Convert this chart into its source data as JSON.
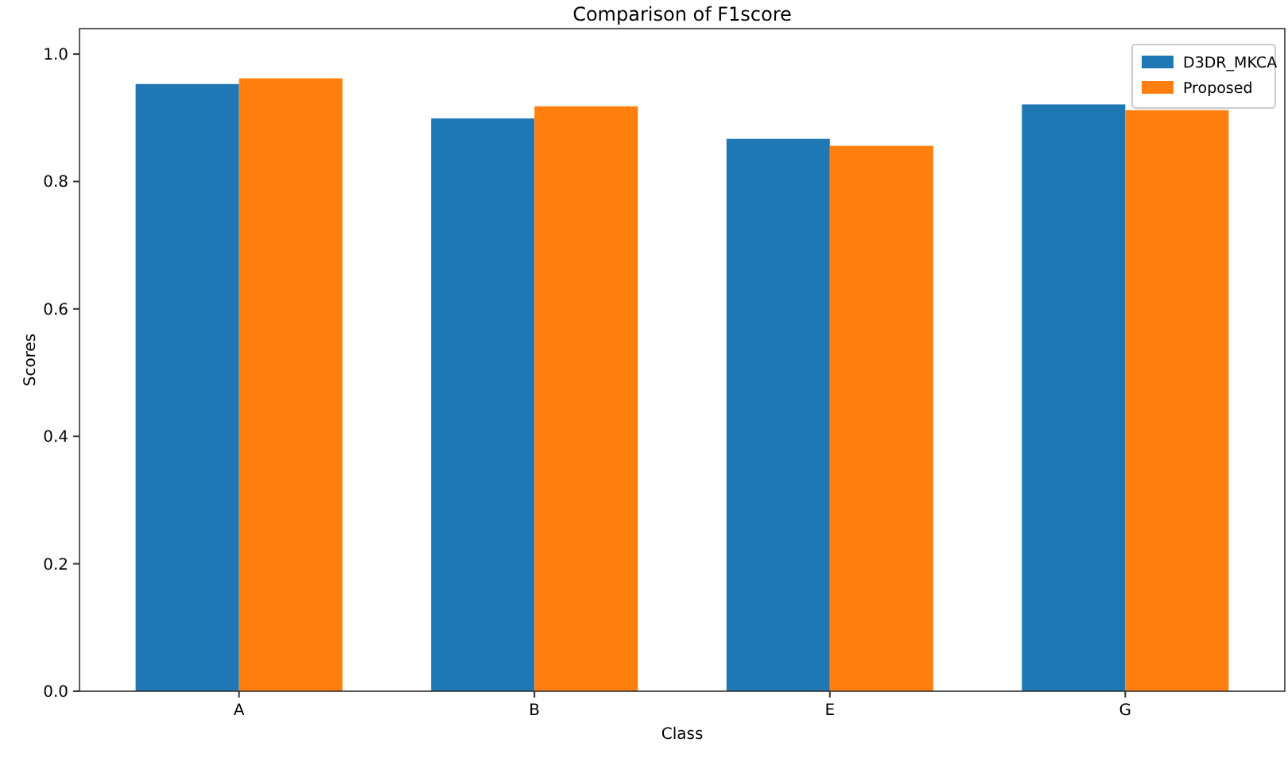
{
  "chart_data": {
    "type": "bar",
    "title": "Comparison of F1score",
    "xlabel": "Class",
    "ylabel": "Scores",
    "categories": [
      "A",
      "B",
      "E",
      "G"
    ],
    "series": [
      {
        "name": "D3DR_MKCA",
        "color": "#1f77b4",
        "values": [
          0.953,
          0.899,
          0.867,
          0.921
        ]
      },
      {
        "name": "Proposed",
        "color": "#ff7f0e",
        "values": [
          0.962,
          0.918,
          0.856,
          0.912
        ]
      }
    ],
    "ylim": [
      0,
      1.04
    ],
    "yticks": [
      {
        "value": 0,
        "label": "0.0"
      },
      {
        "value": 0.2,
        "label": "0.2"
      },
      {
        "value": 0.4,
        "label": "0.4"
      },
      {
        "value": 0.6,
        "label": "0.6"
      },
      {
        "value": 0.8,
        "label": "0.8"
      },
      {
        "value": 1,
        "label": "1.0"
      }
    ],
    "grid": false,
    "legend": "top right"
  }
}
